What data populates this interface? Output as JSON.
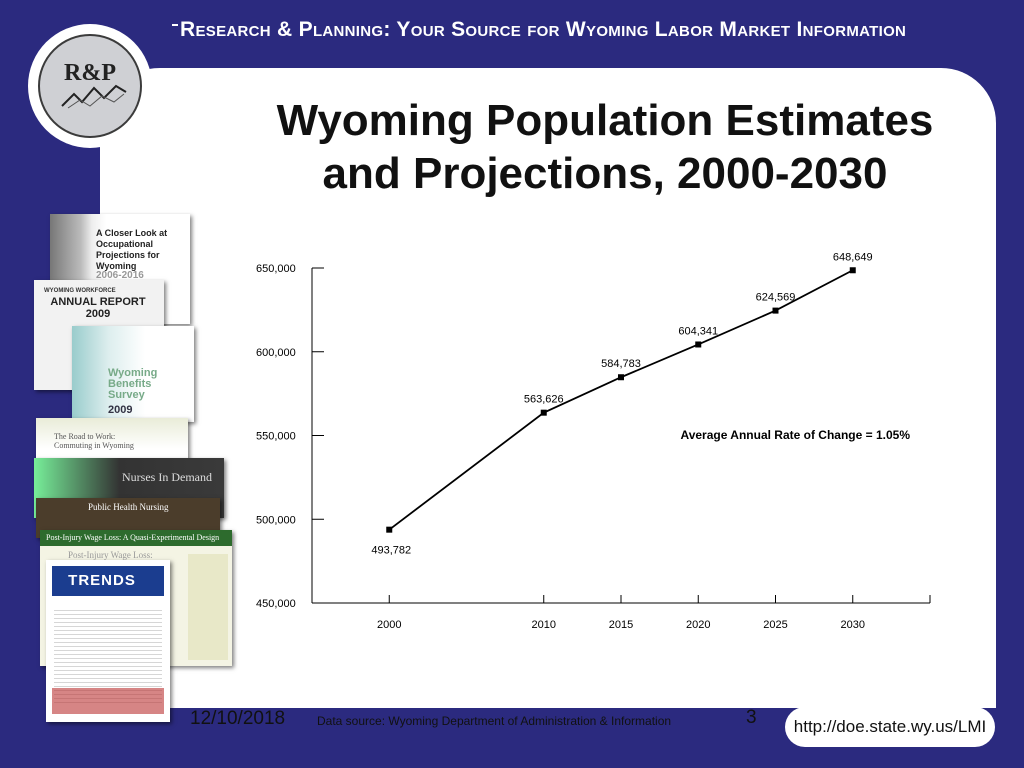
{
  "header": {
    "banner": "Research & Planning: Your Source for Wyoming Labor Market Information",
    "logo_text": "R&P"
  },
  "slide": {
    "title_line1": "Wyoming Population Estimates",
    "title_line2": "and Projections, 2000-2030"
  },
  "footer": {
    "date": "12/10/2018",
    "source": "Data source: Wyoming Department of Administration & Information",
    "page": "3",
    "url": "http://doe.state.wy.us/LMI"
  },
  "thumbnails": {
    "closer_look": "A Closer Look at Occupational Projections for Wyoming",
    "closer_look_years": "2006-2016",
    "annual_report_sub": "WYOMING WORKFORCE",
    "annual_report": "ANNUAL REPORT 2009",
    "benefits": "Wyoming Benefits Survey",
    "benefits_year": "2009",
    "road_to_work": "The Road to Work: Commuting in Wyoming",
    "nurses": "Nurses In Demand",
    "public_health": "Public Health Nursing",
    "post_injury": "Post-Injury Wage Loss: A Quasi-Experimental Design",
    "post_injury_2": "Post-Injury Wage Loss:",
    "trends": "TRENDS"
  },
  "chart_data": {
    "type": "line",
    "title": "",
    "xlabel": "",
    "ylabel": "",
    "x": [
      2000,
      2010,
      2015,
      2020,
      2025,
      2030
    ],
    "x_tick_labels": [
      "2000",
      "2010",
      "2015",
      "2020",
      "2025",
      "2030"
    ],
    "values": [
      493782,
      563626,
      584783,
      604341,
      624569,
      648649
    ],
    "data_labels": [
      "493,782",
      "563,626",
      "584,783",
      "604,341",
      "624,569",
      "648,649"
    ],
    "y_ticks": [
      450000,
      500000,
      550000,
      600000,
      650000
    ],
    "y_tick_labels": [
      "450,000",
      "500,000",
      "550,000",
      "600,000",
      "650,000"
    ],
    "ylim": [
      450000,
      650000
    ],
    "annotation": "Average Annual Rate of Change = 1.05%",
    "grid": false,
    "colors": {
      "line": "#000000",
      "axis": "#000000"
    }
  }
}
